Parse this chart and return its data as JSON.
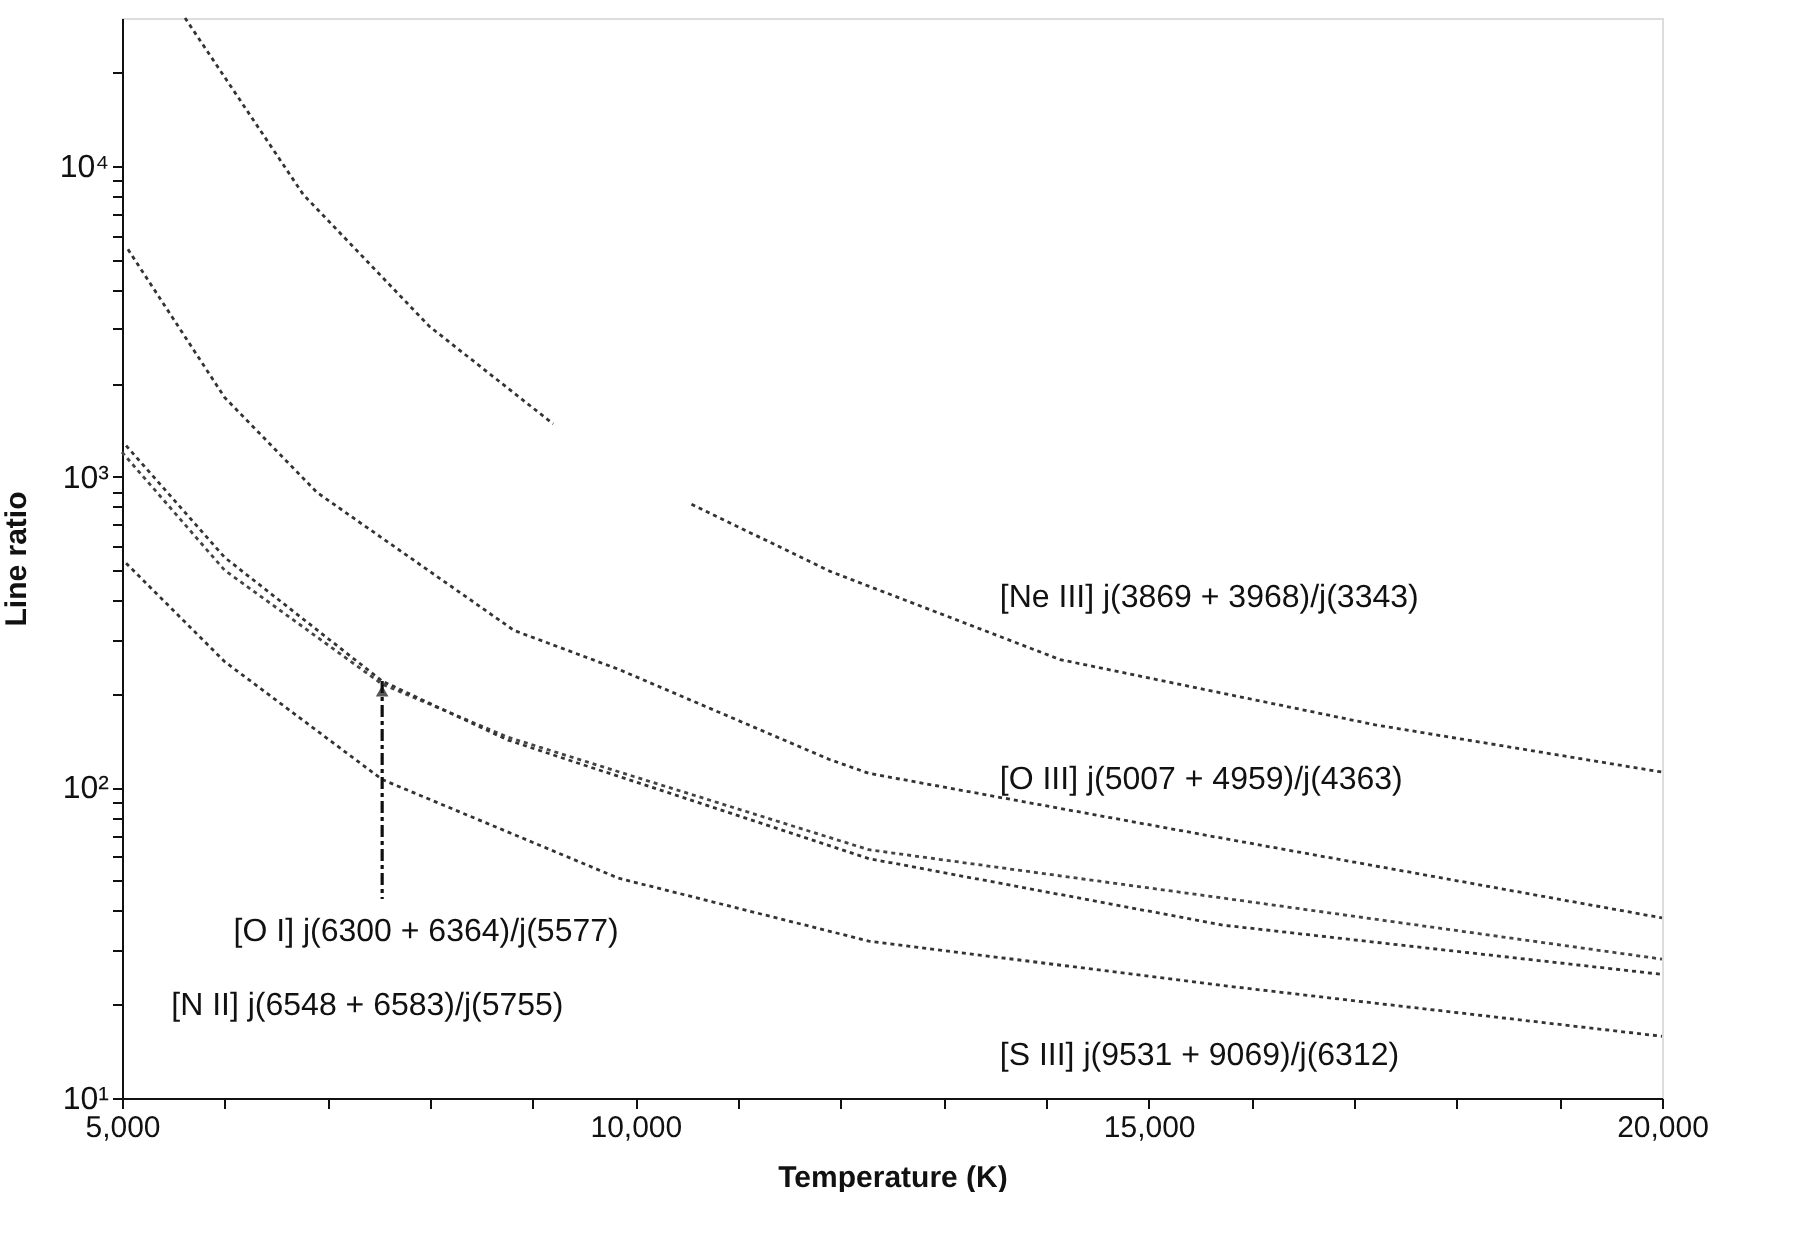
{
  "chart_data": {
    "type": "line",
    "xlabel": "Temperature (K)",
    "ylabel": "Line ratio",
    "series": [
      {
        "color": "#333333",
        "x": [
          5614,
          6766,
          7994,
          9200,
          9900,
          10547,
          11891,
          14136,
          17207,
          20000
        ],
        "values": [
          30000,
          8100,
          3050,
          1480,
          null,
          816,
          497,
          258,
          159,
          112
        ]
      },
      {
        "color": "#333333",
        "x": [
          5058,
          6000,
          6900,
          8820,
          9837,
          11891,
          12274,
          15730,
          20000
        ],
        "values": [
          5400,
          1800,
          890,
          320,
          240,
          123,
          111,
          68.5,
          38
        ]
      },
      {
        "color": "#444444",
        "x": [
          5000,
          6000,
          7534,
          8760,
          12274,
          15730,
          20000
        ],
        "values": [
          1200,
          500,
          215,
          145,
          63,
          44,
          28
        ]
      },
      {
        "color": "#333333",
        "x": [
          5040,
          6000,
          7534,
          8760,
          12274,
          15730,
          20000
        ],
        "values": [
          1260,
          550,
          220,
          142,
          59,
          36,
          25
        ]
      },
      {
        "color": "#333333",
        "x": [
          5040,
          6000,
          7534,
          9837,
          12274,
          15730,
          20000
        ],
        "values": [
          527,
          254,
          106,
          51,
          32,
          23,
          15.8
        ]
      }
    ],
    "annotations": [
      "[Ne III] j(3869 + 3968)/j(3343)",
      "[O III] j(5007 + 4959)/j(4363)",
      "[S III] j(9531 + 9069)/j(6312)",
      {
        "text": "[O I] j(6300 + 6364)/j(5577)",
        "x": 7534,
        "y": 220
      },
      "[N II] j(6548 + 6583)/j(5755)"
    ],
    "log": "y",
    "line_style": "dotted",
    "xlim": [
      5000,
      20000
    ],
    "xticks": [
      {
        "value": 5000,
        "label": "5,000"
      },
      {
        "value": 6000,
        "label": null
      },
      {
        "value": 7000,
        "label": null
      },
      {
        "value": 8000,
        "label": null
      },
      {
        "value": 9000,
        "label": null
      },
      {
        "value": 10000,
        "label": "10,000"
      },
      {
        "value": 11000,
        "label": null
      },
      {
        "value": 12000,
        "label": null
      },
      {
        "value": 13000,
        "label": null
      },
      {
        "value": 14000,
        "label": null
      },
      {
        "value": 15000,
        "label": "15,000"
      },
      {
        "value": 16000,
        "label": null
      },
      {
        "value": 17000,
        "label": null
      },
      {
        "value": 18000,
        "label": null
      },
      {
        "value": 19000,
        "label": null
      },
      {
        "value": 20000,
        "label": "20,000"
      }
    ],
    "ylim": [
      10,
      30000
    ],
    "yticks": [
      {
        "value": 10,
        "label": "10¹"
      },
      {
        "value": 20,
        "label": null
      },
      {
        "value": 30,
        "label": null
      },
      {
        "value": 40,
        "label": null
      },
      {
        "value": 50,
        "label": null
      },
      {
        "value": 60,
        "label": null
      },
      {
        "value": 70,
        "label": null
      },
      {
        "value": 80,
        "label": null
      },
      {
        "value": 90,
        "label": null
      },
      {
        "value": 100,
        "label": "10²"
      },
      {
        "value": 200,
        "label": null
      },
      {
        "value": 300,
        "label": null
      },
      {
        "value": 400,
        "label": null
      },
      {
        "value": 500,
        "label": null
      },
      {
        "value": 600,
        "label": null
      },
      {
        "value": 700,
        "label": null
      },
      {
        "value": 800,
        "label": null
      },
      {
        "value": 900,
        "label": null
      },
      {
        "value": 1000,
        "label": "10³"
      },
      {
        "value": 2000,
        "label": null
      },
      {
        "value": 3000,
        "label": null
      },
      {
        "value": 4000,
        "label": null
      },
      {
        "value": 5000,
        "label": null
      },
      {
        "value": 6000,
        "label": null
      },
      {
        "value": 7000,
        "label": null
      },
      {
        "value": 8000,
        "label": null
      },
      {
        "value": 9000,
        "label": null
      },
      {
        "value": 10000,
        "label": "10⁴"
      },
      {
        "value": 20000,
        "label": null
      }
    ],
    "grid": false
  }
}
